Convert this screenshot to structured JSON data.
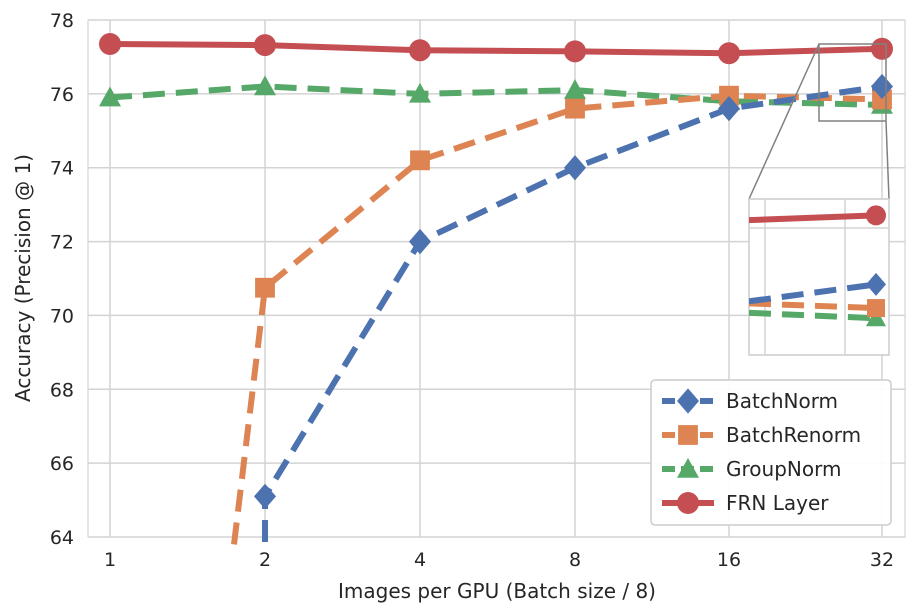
{
  "chart_data": {
    "type": "line",
    "xlabel": "Images per GPU (Batch size / 8)",
    "ylabel": "Accuracy (Precision @ 1)",
    "x_categories": [
      "1",
      "2",
      "4",
      "8",
      "16",
      "32"
    ],
    "x_scale": "log2",
    "ylim": [
      64,
      78
    ],
    "yticks": [
      "64",
      "66",
      "68",
      "70",
      "72",
      "74",
      "76",
      "78"
    ],
    "grid": true,
    "legend_position": "bottom-right",
    "series": [
      {
        "name": "BatchNorm",
        "color": "#4c72b0",
        "marker": "diamond",
        "linestyle": "dashed",
        "values": [
          null,
          65.1,
          72.0,
          74.0,
          75.6,
          76.2
        ]
      },
      {
        "name": "BatchRenorm",
        "color": "#dd8452",
        "marker": "square",
        "linestyle": "dashed",
        "values": [
          null,
          70.75,
          74.2,
          75.6,
          75.95,
          75.85
        ],
        "below_range_start": 63.8
      },
      {
        "name": "GroupNorm",
        "color": "#55a868",
        "marker": "triangle",
        "linestyle": "dashed",
        "values": [
          75.9,
          76.2,
          76.0,
          76.1,
          75.8,
          75.7
        ]
      },
      {
        "name": "FRN Layer",
        "color": "#c44e52",
        "marker": "circle",
        "linestyle": "solid",
        "values": [
          77.35,
          77.32,
          77.18,
          77.15,
          77.1,
          77.22
        ]
      }
    ],
    "inset": {
      "zoom_of": "x between 16 and 32, y around 75.2 to 77.3"
    }
  }
}
